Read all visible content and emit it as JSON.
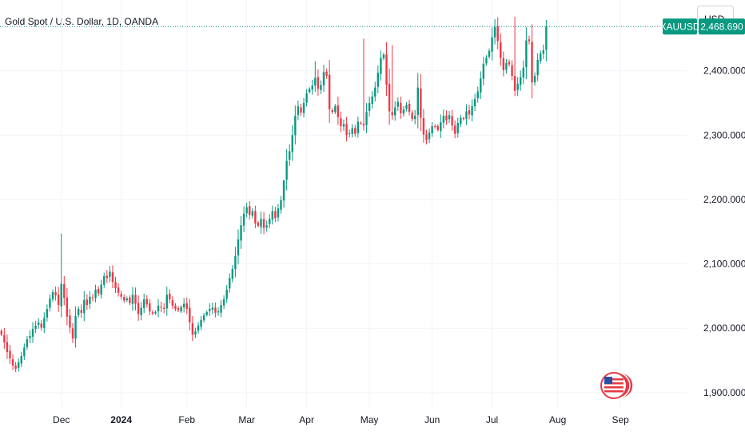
{
  "header": {
    "title": "Gold Spot / U.S. Dollar, 1D, OANDA",
    "currency": "USD"
  },
  "colors": {
    "up": "#089981",
    "down": "#f23645",
    "grid": "#f0f3fa",
    "last_price_line": "#089981"
  },
  "watermark_icon": "flag-logo-icon",
  "chart_data": {
    "type": "candlestick",
    "symbol_label": "XAUUSD",
    "last_price": 2468.69,
    "last_price_label": "2,468.690",
    "y_ticks": [
      {
        "value": 2400,
        "label": "2,400.000"
      },
      {
        "value": 2300,
        "label": "2,300.000"
      },
      {
        "value": 2200,
        "label": "2,200.000"
      },
      {
        "value": 2100,
        "label": "2,100.000"
      },
      {
        "value": 2000,
        "label": "2,000.000"
      },
      {
        "value": 1900,
        "label": "1,900.000"
      }
    ],
    "x_ticks": [
      {
        "label": "Dec",
        "index": 21,
        "bold": false
      },
      {
        "label": "2024",
        "index": 42,
        "bold": true
      },
      {
        "label": "Feb",
        "index": 65,
        "bold": false
      },
      {
        "label": "Mar",
        "index": 86,
        "bold": false
      },
      {
        "label": "Apr",
        "index": 107,
        "bold": false
      },
      {
        "label": "May",
        "index": 129,
        "bold": false
      },
      {
        "label": "Jun",
        "index": 151,
        "bold": false
      },
      {
        "label": "Jul",
        "index": 172,
        "bold": false
      },
      {
        "label": "Aug",
        "index": 195,
        "bold": false
      },
      {
        "label": "Sep",
        "index": 217,
        "bold": false
      }
    ],
    "ylim": [
      1875,
      2510
    ],
    "xlim": [
      -0.5,
      240.5
    ],
    "closes": [
      1990,
      1978,
      1963,
      1953,
      1942,
      1937,
      1947,
      1957,
      1970,
      1983,
      1988,
      1999,
      2004,
      2009,
      2001,
      2016,
      2030,
      2046,
      2056,
      2051,
      2036,
      2069,
      2047,
      2018,
      2001,
      1984,
      2019,
      2030,
      2024,
      2044,
      2036,
      2049,
      2047,
      2060,
      2054,
      2068,
      2081,
      2078,
      2088,
      2072,
      2062,
      2055,
      2049,
      2043,
      2046,
      2039,
      2052,
      2038,
      2022,
      2032,
      2045,
      2037,
      2026,
      2023,
      2025,
      2035,
      2032,
      2030,
      2052,
      2045,
      2035,
      2030,
      2028,
      2033,
      2038,
      2030,
      2009,
      1990,
      1995,
      2004,
      2013,
      2020,
      2025,
      2030,
      2032,
      2024,
      2026,
      2036,
      2045,
      2060,
      2078,
      2092,
      2112,
      2138,
      2160,
      2178,
      2188,
      2176,
      2182,
      2163,
      2159,
      2170,
      2156,
      2160,
      2170,
      2182,
      2171,
      2186,
      2199,
      2230,
      2260,
      2275,
      2300,
      2330,
      2345,
      2335,
      2350,
      2365,
      2372,
      2377,
      2389,
      2372,
      2378,
      2398,
      2392,
      2340,
      2336,
      2345,
      2328,
      2314,
      2317,
      2300,
      2303,
      2311,
      2302,
      2321,
      2318,
      2315,
      2336,
      2350,
      2360,
      2374,
      2397,
      2420,
      2425,
      2378,
      2337,
      2331,
      2343,
      2352,
      2334,
      2340,
      2347,
      2336,
      2325,
      2330,
      2374,
      2327,
      2301,
      2292,
      2304,
      2314,
      2313,
      2308,
      2320,
      2330,
      2323,
      2331,
      2315,
      2302,
      2319,
      2327,
      2325,
      2337,
      2332,
      2345,
      2356,
      2368,
      2388,
      2411,
      2420,
      2431,
      2452,
      2468,
      2446,
      2420,
      2401,
      2412,
      2410,
      2392,
      2369,
      2380,
      2390,
      2405,
      2447,
      2446,
      2382,
      2392,
      2417,
      2427,
      2432,
      2468.69
    ]
  }
}
